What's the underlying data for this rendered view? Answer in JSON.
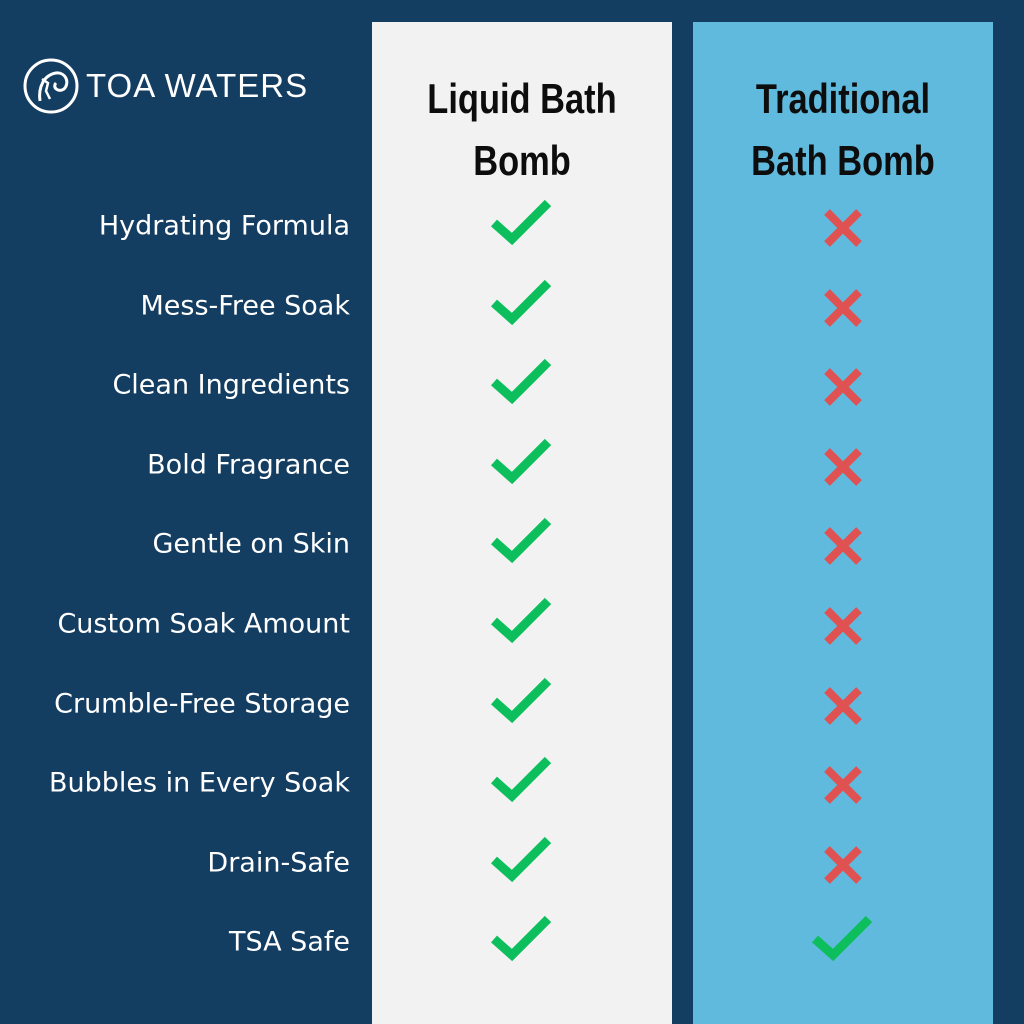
{
  "brand": {
    "name": "TOA WATERS"
  },
  "columns": [
    {
      "title_line1": "Liquid Bath",
      "title_line2": "Bomb",
      "color": "#f2f2f2"
    },
    {
      "title_line1": "Traditional",
      "title_line2": "Bath Bomb",
      "color": "#5fbadd"
    }
  ],
  "colors": {
    "background": "#143d62",
    "check": "#0dbf5c",
    "cross": "#e05252"
  },
  "rows": [
    {
      "label": "Hydrating Formula",
      "liquid": "check",
      "traditional": "cross"
    },
    {
      "label": "Mess-Free Soak",
      "liquid": "check",
      "traditional": "cross"
    },
    {
      "label": "Clean Ingredients",
      "liquid": "check",
      "traditional": "cross"
    },
    {
      "label": "Bold Fragrance",
      "liquid": "check",
      "traditional": "cross"
    },
    {
      "label": "Gentle on Skin",
      "liquid": "check",
      "traditional": "cross"
    },
    {
      "label": "Custom Soak Amount",
      "liquid": "check",
      "traditional": "cross"
    },
    {
      "label": "Crumble-Free Storage",
      "liquid": "check",
      "traditional": "cross"
    },
    {
      "label": "Bubbles in Every Soak",
      "liquid": "check",
      "traditional": "cross"
    },
    {
      "label": "Drain-Safe",
      "liquid": "check",
      "traditional": "cross"
    },
    {
      "label": "TSA Safe",
      "liquid": "check",
      "traditional": "check"
    }
  ]
}
